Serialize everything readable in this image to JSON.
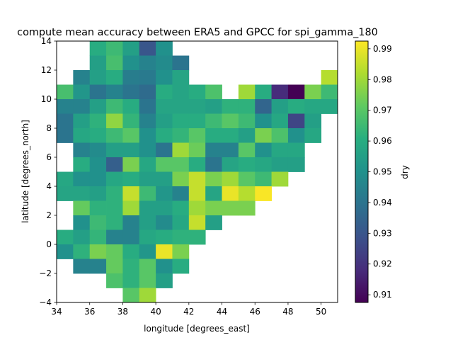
{
  "chart_data": {
    "type": "heatmap",
    "title": "compute mean accuracy between ERA5 and GPCC for spi_gamma_180",
    "xlabel": "longitude [degrees_east]",
    "ylabel": "latitude [degrees_north]",
    "colorbar_label": "dry",
    "colormap": "viridis",
    "xlim": [
      34,
      51
    ],
    "ylim": [
      -4,
      14
    ],
    "cell_size": 1,
    "x_origin": 34,
    "y_top": 14,
    "vmin": 0.9075,
    "vmax": 0.9925,
    "x_ticks": [
      34,
      36,
      38,
      40,
      42,
      44,
      46,
      48,
      50
    ],
    "y_ticks": [
      -4,
      -2,
      0,
      2,
      4,
      6,
      8,
      10,
      12,
      14
    ],
    "colorbar_ticks": [
      0.91,
      0.92,
      0.93,
      0.94,
      0.95,
      0.96,
      0.97,
      0.98,
      0.99
    ],
    "grid": false,
    "rows": [
      [
        null,
        null,
        0.96,
        0.965,
        0.955,
        0.93,
        0.95,
        null,
        null,
        null,
        null,
        null,
        null,
        null,
        null,
        null,
        null
      ],
      [
        null,
        null,
        0.955,
        0.967,
        0.95,
        0.945,
        0.948,
        0.94,
        null,
        null,
        null,
        null,
        null,
        null,
        null,
        null,
        null
      ],
      [
        null,
        0.945,
        0.955,
        0.96,
        0.943,
        0.942,
        0.95,
        0.957,
        null,
        null,
        null,
        null,
        null,
        null,
        null,
        null,
        0.983
      ],
      [
        0.967,
        0.952,
        0.94,
        0.945,
        0.94,
        0.937,
        0.96,
        0.957,
        0.96,
        0.968,
        null,
        0.98,
        0.96,
        0.918,
        0.907,
        0.975,
        0.965
      ],
      [
        0.945,
        0.945,
        0.955,
        0.965,
        0.96,
        0.94,
        0.957,
        0.957,
        0.957,
        0.955,
        0.962,
        0.962,
        0.935,
        0.955,
        0.96,
        0.958,
        0.958
      ],
      [
        0.94,
        0.955,
        0.962,
        0.978,
        0.963,
        0.945,
        0.955,
        0.96,
        0.96,
        0.965,
        0.97,
        0.965,
        0.95,
        0.958,
        0.925,
        0.955,
        null
      ],
      [
        0.94,
        0.958,
        0.96,
        0.965,
        0.97,
        0.95,
        0.96,
        0.963,
        0.97,
        0.96,
        0.96,
        0.955,
        0.975,
        0.968,
        0.95,
        0.958,
        null
      ],
      [
        null,
        0.945,
        0.948,
        0.955,
        0.955,
        0.95,
        0.94,
        0.98,
        0.973,
        0.945,
        0.945,
        0.97,
        0.95,
        0.958,
        0.958,
        null,
        null
      ],
      [
        null,
        0.96,
        0.95,
        0.933,
        0.975,
        0.958,
        0.97,
        0.97,
        0.96,
        0.94,
        0.957,
        0.96,
        0.958,
        0.955,
        0.955,
        null,
        null
      ],
      [
        0.958,
        0.95,
        0.95,
        0.958,
        0.96,
        0.955,
        0.955,
        0.975,
        0.985,
        0.975,
        0.98,
        0.97,
        0.965,
        0.98,
        null,
        null,
        null
      ],
      [
        0.957,
        0.957,
        0.955,
        0.962,
        0.985,
        0.965,
        0.952,
        0.945,
        0.985,
        0.957,
        0.99,
        0.983,
        0.992,
        null,
        null,
        null,
        null
      ],
      [
        null,
        0.972,
        0.962,
        0.962,
        0.98,
        0.955,
        0.955,
        0.96,
        0.98,
        0.975,
        0.975,
        0.975,
        null,
        null,
        null,
        null,
        null
      ],
      [
        null,
        0.95,
        0.965,
        0.962,
        0.945,
        0.955,
        0.948,
        0.958,
        0.985,
        0.955,
        null,
        null,
        null,
        null,
        null,
        null,
        null
      ],
      [
        0.96,
        0.955,
        0.963,
        0.945,
        0.945,
        0.958,
        0.96,
        0.962,
        0.962,
        null,
        null,
        null,
        null,
        null,
        null,
        null,
        null
      ],
      [
        0.95,
        0.962,
        0.975,
        0.972,
        0.96,
        0.952,
        0.99,
        0.975,
        null,
        null,
        null,
        null,
        null,
        null,
        null,
        null,
        null
      ],
      [
        null,
        0.945,
        0.945,
        0.972,
        0.962,
        0.97,
        0.95,
        0.96,
        null,
        null,
        null,
        null,
        null,
        null,
        null,
        null,
        null
      ],
      [
        null,
        null,
        null,
        0.968,
        0.962,
        0.97,
        0.955,
        null,
        null,
        null,
        null,
        null,
        null,
        null,
        null,
        null,
        null
      ],
      [
        null,
        null,
        null,
        null,
        0.97,
        0.98,
        null,
        null,
        null,
        null,
        null,
        null,
        null,
        null,
        null,
        null,
        null
      ]
    ]
  }
}
